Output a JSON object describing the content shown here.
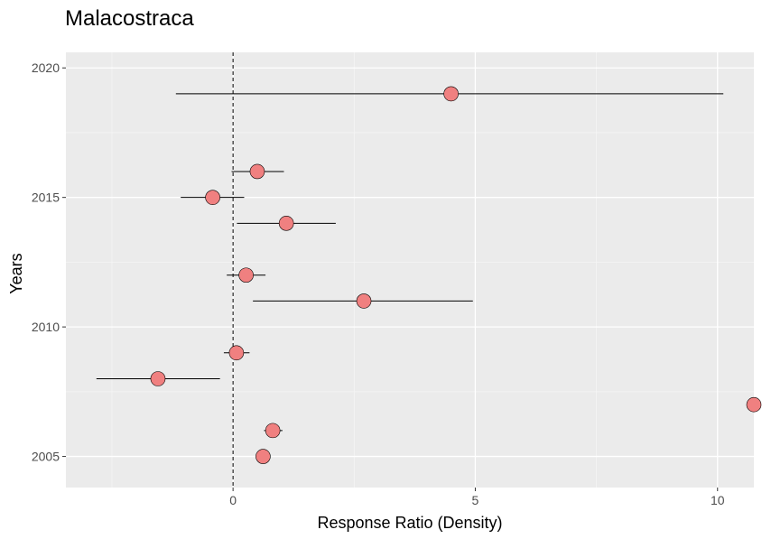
{
  "chart_data": {
    "type": "scatter",
    "title": "Malacostraca",
    "xlabel": "Response Ratio (Density)",
    "ylabel": "Years",
    "xlim": [
      -3.45,
      10.75
    ],
    "ylim": [
      2003.8,
      2020.6
    ],
    "x_ticks": [
      0,
      5,
      10
    ],
    "y_ticks": [
      2005,
      2010,
      2015,
      2020
    ],
    "x_tick_labels": [
      "0",
      "5",
      "10"
    ],
    "y_tick_labels": [
      "2005",
      "2010",
      "2015",
      "2020"
    ],
    "grid": true,
    "reference_line_x": 0,
    "points": [
      {
        "year": 2019,
        "value": 4.5,
        "ci_low": -1.18,
        "ci_high": 10.12
      },
      {
        "year": 2016,
        "value": 0.5,
        "ci_low": -0.03,
        "ci_high": 1.05
      },
      {
        "year": 2015,
        "value": -0.42,
        "ci_low": -1.08,
        "ci_high": 0.23
      },
      {
        "year": 2014,
        "value": 1.1,
        "ci_low": 0.08,
        "ci_high": 2.12
      },
      {
        "year": 2012,
        "value": 0.27,
        "ci_low": -0.13,
        "ci_high": 0.67
      },
      {
        "year": 2011,
        "value": 2.7,
        "ci_low": 0.41,
        "ci_high": 4.95
      },
      {
        "year": 2009,
        "value": 0.07,
        "ci_low": -0.19,
        "ci_high": 0.34
      },
      {
        "year": 2008,
        "value": -1.55,
        "ci_low": -2.82,
        "ci_high": -0.27
      },
      {
        "year": 2007,
        "value": 10.75
      },
      {
        "year": 2006,
        "value": 0.82,
        "ci_low": 0.64,
        "ci_high": 1.02
      },
      {
        "year": 2005,
        "value": 0.62,
        "ci_low": 0.58,
        "ci_high": 0.66
      }
    ],
    "colors": {
      "panel": "#ebebeb",
      "grid_major": "#ffffff",
      "grid_minor": "#f5f5f5",
      "point_fill": "#f08080",
      "point_stroke": "#000000"
    }
  }
}
